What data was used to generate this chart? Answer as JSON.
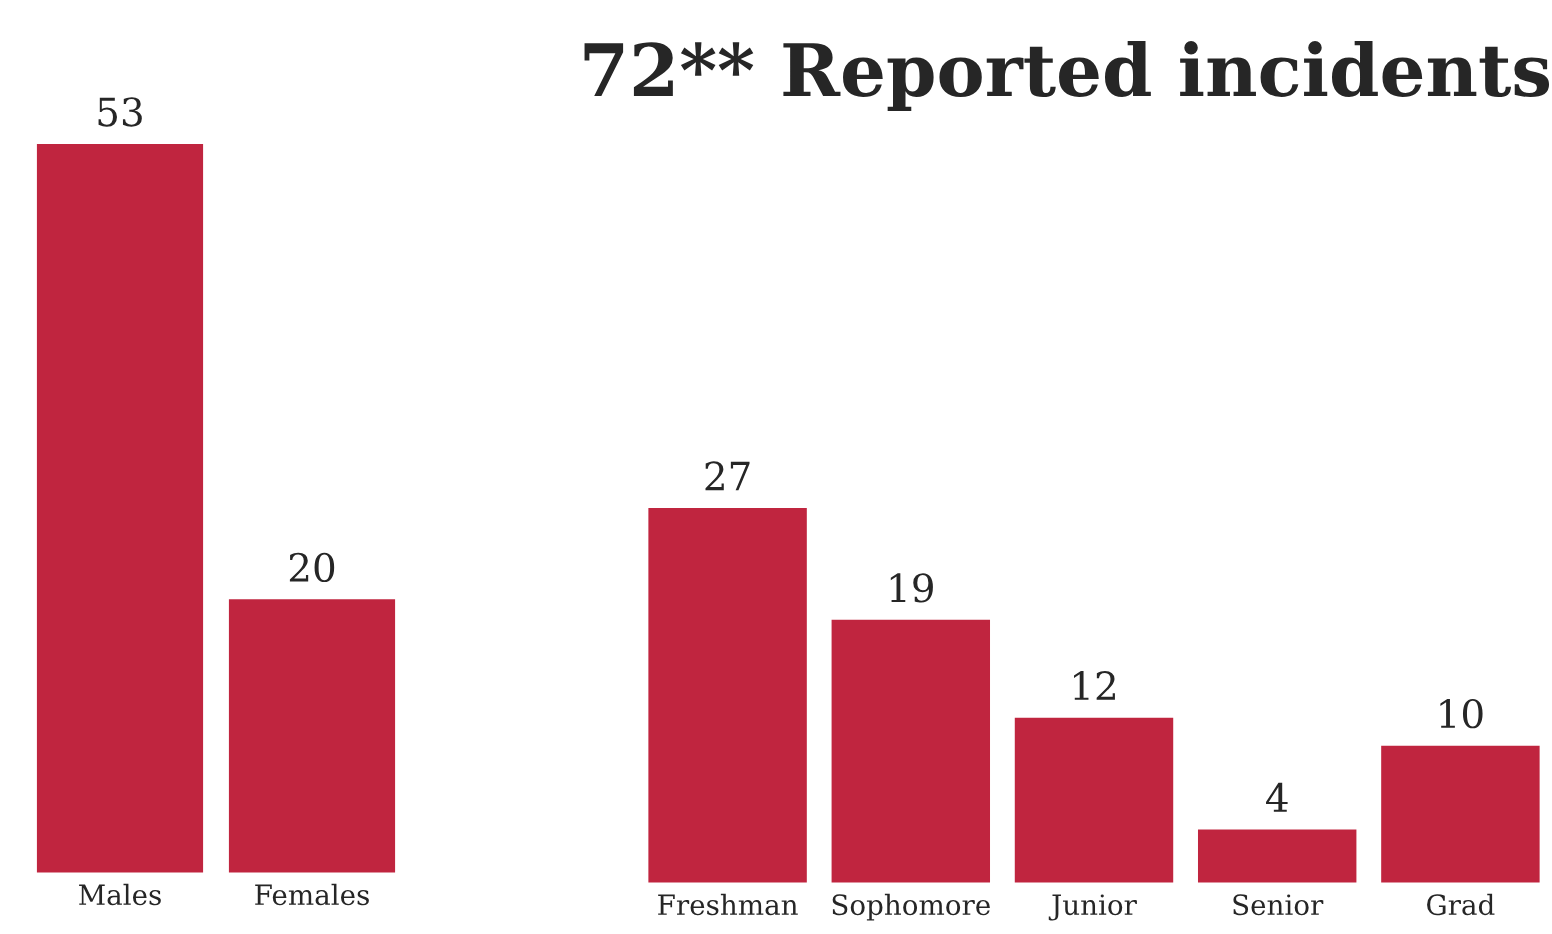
{
  "chart_data": [
    {
      "type": "bar",
      "categories": [
        "Males",
        "Females"
      ],
      "values": [
        53,
        20
      ],
      "color": "#c0253f",
      "data_labels": true
    },
    {
      "type": "bar",
      "title": "72** Reported incidents",
      "categories": [
        "Freshman",
        "Sophomore",
        "Junior",
        "Senior",
        "Grad"
      ],
      "values": [
        27,
        19,
        12,
        4,
        10
      ],
      "color": "#c0253f",
      "data_labels": true
    }
  ]
}
